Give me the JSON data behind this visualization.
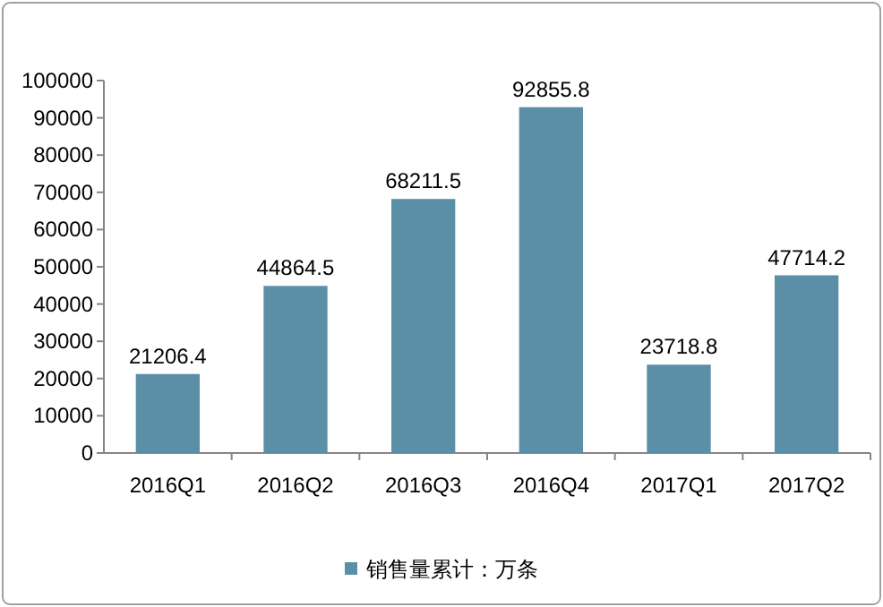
{
  "chart_data": {
    "type": "bar",
    "categories": [
      "2016Q1",
      "2016Q2",
      "2016Q3",
      "2016Q4",
      "2017Q1",
      "2017Q2"
    ],
    "series": [
      {
        "name": "销售量累计：万条",
        "color": "#5b8fa8",
        "values": [
          21206.4,
          44864.5,
          68211.5,
          92855.8,
          23718.8,
          47714.2
        ]
      }
    ],
    "ylim": [
      0,
      100000
    ],
    "yticks": [
      0,
      10000,
      20000,
      30000,
      40000,
      50000,
      60000,
      70000,
      80000,
      90000,
      100000
    ],
    "data_labels": true,
    "legend": "bottom",
    "grid": false
  }
}
